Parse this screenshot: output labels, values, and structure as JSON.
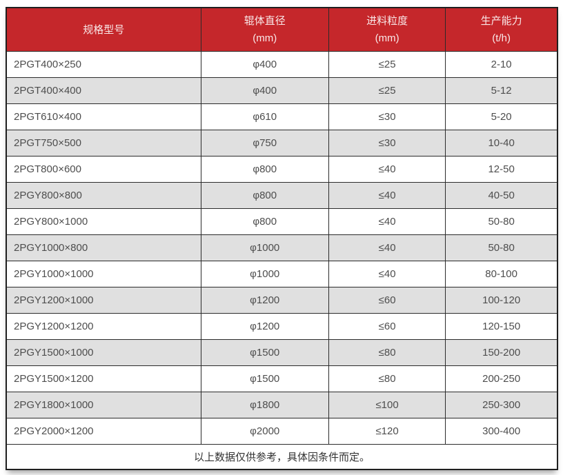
{
  "table": {
    "columns": [
      {
        "label": "规格型号",
        "unit": ""
      },
      {
        "label": "辊体直径",
        "unit": "(mm)"
      },
      {
        "label": "进料粒度",
        "unit": "(mm)"
      },
      {
        "label": "生产能力",
        "unit": "(t/h)"
      }
    ],
    "rows": [
      [
        "2PGT400×250",
        "φ400",
        "≤25",
        "2-10"
      ],
      [
        "2PGT400×400",
        "φ400",
        "≤25",
        "5-12"
      ],
      [
        "2PGT610×400",
        "φ610",
        "≤30",
        "5-20"
      ],
      [
        "2PGT750×500",
        "φ750",
        "≤30",
        "10-40"
      ],
      [
        "2PGT800×600",
        "φ800",
        "≤40",
        "12-50"
      ],
      [
        "2PGY800×800",
        "φ800",
        "≤40",
        "40-50"
      ],
      [
        "2PGY800×1000",
        "φ800",
        "≤40",
        "50-80"
      ],
      [
        "2PGY1000×800",
        "φ1000",
        "≤40",
        "50-80"
      ],
      [
        "2PGY1000×1000",
        "φ1000",
        "≤40",
        "80-100"
      ],
      [
        "2PGY1200×1000",
        "φ1200",
        "≤60",
        "100-120"
      ],
      [
        "2PGY1200×1200",
        "φ1200",
        "≤60",
        "120-150"
      ],
      [
        "2PGY1500×1000",
        "φ1500",
        "≤80",
        "150-200"
      ],
      [
        "2PGY1500×1200",
        "φ1500",
        "≤80",
        "200-250"
      ],
      [
        "2PGY1800×1000",
        "φ1800",
        "≤100",
        "250-300"
      ],
      [
        "2PGY2000×1200",
        "φ2000",
        "≤120",
        "300-400"
      ]
    ],
    "footnote": "以上数据仅供参考，具体因条件而定。"
  },
  "colors": {
    "header_bg": "#c5272b",
    "header_text": "#f9e8e8",
    "row_bg": "#ffffff",
    "row_alt_bg": "#e0e0e0",
    "border": "#2a2a2a",
    "cell_text": "#4d4d4d"
  },
  "chart_data": {
    "type": "table",
    "title": "",
    "columns": [
      "规格型号",
      "辊体直径 (mm)",
      "进料粒度 (mm)",
      "生产能力 (t/h)"
    ],
    "rows": [
      [
        "2PGT400×250",
        "φ400",
        "≤25",
        "2-10"
      ],
      [
        "2PGT400×400",
        "φ400",
        "≤25",
        "5-12"
      ],
      [
        "2PGT610×400",
        "φ610",
        "≤30",
        "5-20"
      ],
      [
        "2PGT750×500",
        "φ750",
        "≤30",
        "10-40"
      ],
      [
        "2PGT800×600",
        "φ800",
        "≤40",
        "12-50"
      ],
      [
        "2PGY800×800",
        "φ800",
        "≤40",
        "40-50"
      ],
      [
        "2PGY800×1000",
        "φ800",
        "≤40",
        "50-80"
      ],
      [
        "2PGY1000×800",
        "φ1000",
        "≤40",
        "50-80"
      ],
      [
        "2PGY1000×1000",
        "φ1000",
        "≤40",
        "80-100"
      ],
      [
        "2PGY1200×1000",
        "φ1200",
        "≤60",
        "100-120"
      ],
      [
        "2PGY1200×1200",
        "φ1200",
        "≤60",
        "120-150"
      ],
      [
        "2PGY1500×1000",
        "φ1500",
        "≤80",
        "150-200"
      ],
      [
        "2PGY1500×1200",
        "φ1500",
        "≤80",
        "200-250"
      ],
      [
        "2PGY1800×1000",
        "φ1800",
        "≤100",
        "250-300"
      ],
      [
        "2PGY2000×1200",
        "φ2000",
        "≤120",
        "300-400"
      ]
    ],
    "footnote": "以上数据仅供参考，具体因条件而定。"
  }
}
